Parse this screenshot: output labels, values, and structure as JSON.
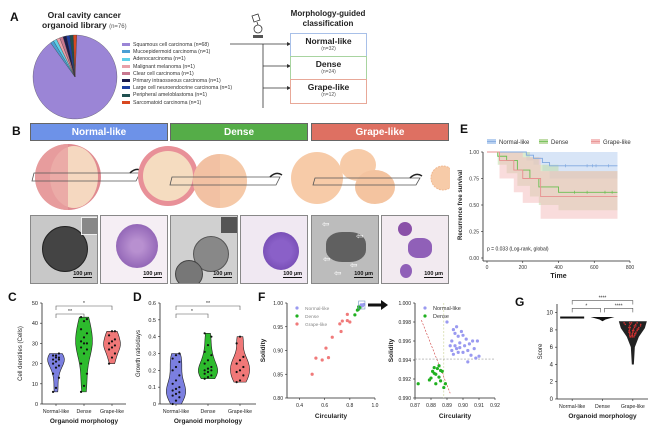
{
  "panels": {
    "A": "A",
    "B": "B",
    "C": "C",
    "D": "D",
    "E": "E",
    "F": "F",
    "G": "G"
  },
  "panel_a": {
    "title_line1": "Oral cavity cancer",
    "title_line2": "organoid library",
    "title_n": "(n=76)",
    "microscope_icon": "microscope-icon",
    "classification_title_line1": "Morphology-guided",
    "classification_title_line2": "classification",
    "classes": [
      {
        "name": "Normal-like",
        "n": "(n=32)",
        "border": "#a8c0e8"
      },
      {
        "name": "Dense",
        "n": "(n=24)",
        "border": "#a8d4a0"
      },
      {
        "name": "Grape-like",
        "n": "(n=12)",
        "border": "#e8a898"
      }
    ]
  },
  "chart_data": [
    {
      "id": "A-pie",
      "type": "pie",
      "title": "Oral cavity cancer organoid library (n=76)",
      "labels": [
        "Squamous cell carcinoma (n=68)",
        "Mucoepidermoid carcinoma (n=1)",
        "Adenocarcinoma (n=1)",
        "Malignant melanoma (n=1)",
        "Clear cell carcinoma (n=1)",
        "Primary intraosseous carcinoma (n=1)",
        "Large cell neuroendocrine carcinoma (n=1)",
        "Peripheral ameloblastoma (n=1)",
        "Sarcomatoid carcinoma (n=1)"
      ],
      "values": [
        68,
        1,
        1,
        1,
        1,
        1,
        1,
        1,
        1
      ],
      "colors": [
        "#9b85d6",
        "#4a9fd4",
        "#5fd0e8",
        "#e8a0a8",
        "#c87890",
        "#1a1a4a",
        "#2040a0",
        "#205050",
        "#d84820"
      ],
      "legend": "right"
    },
    {
      "id": "C-violin",
      "type": "violin",
      "title": "",
      "xlabel": "Organoid morphology",
      "ylabel": "Cell densities (Cells)",
      "categories": [
        "Normal-like",
        "Dense",
        "Grape-like"
      ],
      "ylim": [
        0,
        50
      ],
      "yticks": [
        0,
        10,
        20,
        30,
        40,
        50
      ],
      "series": [
        {
          "name": "Normal-like",
          "color": "#7b7fe0",
          "values": [
            6,
            8,
            13,
            15,
            18,
            19,
            20,
            21,
            22,
            22,
            23,
            23,
            24,
            24,
            25
          ]
        },
        {
          "name": "Dense",
          "color": "#2dbb2d",
          "values": [
            6,
            9,
            15,
            20,
            25,
            27,
            28,
            30,
            30,
            31,
            33,
            35,
            37,
            41,
            42,
            43
          ]
        },
        {
          "name": "Grape-like",
          "color": "#f07878",
          "values": [
            20,
            23,
            25,
            27,
            28,
            29,
            30,
            31,
            32,
            34,
            36,
            36
          ]
        }
      ],
      "significance": [
        {
          "pair": [
            "Normal-like",
            "Dense"
          ],
          "label": "**"
        },
        {
          "pair": [
            "Normal-like",
            "Grape-like"
          ],
          "label": "*"
        }
      ]
    },
    {
      "id": "D-violin",
      "type": "violin",
      "title": "",
      "xlabel": "Organoid morphology",
      "ylabel": "Growth ratio/days",
      "categories": [
        "Normal-like",
        "Dense",
        "Grape-like"
      ],
      "ylim": [
        0,
        0.6
      ],
      "yticks": [
        0.0,
        0.1,
        0.2,
        0.3,
        0.4,
        0.5,
        0.6
      ],
      "series": [
        {
          "name": "Normal-like",
          "color": "#7b7fe0",
          "values": [
            0.0,
            0.02,
            0.04,
            0.05,
            0.06,
            0.07,
            0.08,
            0.09,
            0.1,
            0.12,
            0.14,
            0.17,
            0.2,
            0.22,
            0.25,
            0.27,
            0.29,
            0.3
          ]
        },
        {
          "name": "Dense",
          "color": "#2dbb2d",
          "values": [
            0.15,
            0.16,
            0.17,
            0.18,
            0.19,
            0.2,
            0.2,
            0.21,
            0.22,
            0.24,
            0.26,
            0.29,
            0.31,
            0.35,
            0.4,
            0.42
          ]
        },
        {
          "name": "Grape-like",
          "color": "#f07878",
          "values": [
            0.13,
            0.14,
            0.17,
            0.19,
            0.2,
            0.22,
            0.24,
            0.26,
            0.28,
            0.36,
            0.4
          ]
        }
      ],
      "significance": [
        {
          "pair": [
            "Normal-like",
            "Dense"
          ],
          "label": "*"
        },
        {
          "pair": [
            "Normal-like",
            "Grape-like"
          ],
          "label": "**"
        }
      ]
    },
    {
      "id": "E-km",
      "type": "line",
      "title": "",
      "xlabel": "Time",
      "ylabel": "Recurrence free survival",
      "xlim": [
        0,
        800
      ],
      "ylim": [
        0,
        1.0
      ],
      "xticks": [
        0,
        200,
        400,
        600,
        800
      ],
      "yticks": [
        "0.00",
        "0.25",
        "0.50",
        "0.75",
        "1.00"
      ],
      "legend": "top",
      "annotation": "p = 0.033 (Log-rank, global)",
      "series": [
        {
          "name": "Normal-like",
          "color": "#7fa8e0",
          "band": "#b8d0f0",
          "x": [
            0,
            220,
            260,
            310,
            350,
            730
          ],
          "y": [
            1.0,
            0.97,
            0.94,
            0.9,
            0.87,
            0.87
          ],
          "lower": [
            1.0,
            0.92,
            0.88,
            0.82,
            0.75,
            0.75
          ],
          "upper": [
            1.0,
            1.0,
            1.0,
            1.0,
            1.0,
            1.0
          ],
          "censor_x": [
            440,
            560,
            590,
            610,
            680
          ]
        },
        {
          "name": "Dense",
          "color": "#6abf50",
          "band": "#c0dca8",
          "x": [
            0,
            60,
            110,
            170,
            240,
            290,
            400,
            730
          ],
          "y": [
            1.0,
            0.96,
            0.92,
            0.83,
            0.75,
            0.67,
            0.62,
            0.62
          ],
          "lower": [
            1.0,
            0.88,
            0.8,
            0.68,
            0.58,
            0.5,
            0.45,
            0.45
          ],
          "upper": [
            1.0,
            1.0,
            1.0,
            1.0,
            0.95,
            0.88,
            0.82,
            0.82
          ],
          "censor_x": [
            490,
            560,
            660,
            700
          ]
        },
        {
          "name": "Grape-like",
          "color": "#e89090",
          "band": "#f4c0c0",
          "x": [
            0,
            70,
            150,
            200,
            300,
            730
          ],
          "y": [
            1.0,
            0.92,
            0.83,
            0.75,
            0.58,
            0.58
          ],
          "lower": [
            1.0,
            0.75,
            0.62,
            0.52,
            0.37,
            0.37
          ],
          "upper": [
            1.0,
            1.0,
            1.0,
            0.95,
            0.82,
            0.82
          ],
          "censor_x": []
        }
      ]
    },
    {
      "id": "F-scatter-full",
      "type": "scatter",
      "xlabel": "Circularity",
      "ylabel": "Solidity",
      "xlim": [
        0.3,
        1.0
      ],
      "ylim": [
        0.8,
        1.0
      ],
      "xticks": [
        "0.4",
        "0.6",
        "0.8",
        "1.0"
      ],
      "yticks": [
        "0.80",
        "0.85",
        "0.90",
        "0.95",
        "1.00"
      ],
      "legend": "top-left",
      "series": [
        {
          "name": "Normal-like",
          "color": "#9a9af0",
          "points": [
            [
              0.89,
              0.996
            ],
            [
              0.9,
              0.995
            ],
            [
              0.91,
              0.997
            ],
            [
              0.9,
              0.994
            ]
          ]
        },
        {
          "name": "Dense",
          "color": "#20b020",
          "points": [
            [
              0.84,
              0.975
            ],
            [
              0.86,
              0.985
            ],
            [
              0.87,
              0.987
            ],
            [
              0.88,
              0.99
            ],
            [
              0.87,
              0.992
            ]
          ]
        },
        {
          "name": "Grape-like",
          "color": "#f07a7a",
          "points": [
            [
              0.5,
              0.85
            ],
            [
              0.53,
              0.884
            ],
            [
              0.58,
              0.88
            ],
            [
              0.61,
              0.905
            ],
            [
              0.63,
              0.885
            ],
            [
              0.66,
              0.928
            ],
            [
              0.72,
              0.956
            ],
            [
              0.73,
              0.94
            ],
            [
              0.74,
              0.962
            ],
            [
              0.78,
              0.963
            ],
            [
              0.78,
              0.976
            ],
            [
              0.8,
              0.96
            ]
          ]
        }
      ]
    },
    {
      "id": "F-scatter-zoom",
      "type": "scatter",
      "xlabel": "Circularity",
      "ylabel": "Solidity",
      "xlim": [
        0.87,
        0.92
      ],
      "ylim": [
        0.99,
        1.0
      ],
      "xticks": [
        "0.87",
        "0.88",
        "0.89",
        "0.90",
        "0.91",
        "0.92"
      ],
      "yticks": [
        "0.990",
        "0.992",
        "0.994",
        "0.996",
        "0.998",
        "1.000"
      ],
      "legend": "top-left",
      "series": [
        {
          "name": "Normal-like",
          "color": "#9a9af0",
          "points": [
            [
              0.89,
              0.998
            ],
            [
              0.892,
              0.9955
            ],
            [
              0.893,
              0.996
            ],
            [
              0.894,
              0.9972
            ],
            [
              0.895,
              0.9968
            ],
            [
              0.896,
              0.9975
            ],
            [
              0.896,
              0.9952
            ],
            [
              0.897,
              0.9965
            ],
            [
              0.898,
              0.9958
            ],
            [
              0.899,
              0.997
            ],
            [
              0.9,
              0.9966
            ],
            [
              0.9,
              0.9948
            ],
            [
              0.901,
              0.9955
            ],
            [
              0.902,
              0.9962
            ],
            [
              0.903,
              0.995
            ],
            [
              0.904,
              0.9957
            ],
            [
              0.905,
              0.9945
            ],
            [
              0.906,
              0.996
            ],
            [
              0.907,
              0.9952
            ],
            [
              0.908,
              0.9942
            ],
            [
              0.893,
              0.995
            ],
            [
              0.894,
              0.9946
            ],
            [
              0.895,
              0.9955
            ],
            [
              0.897,
              0.9948
            ],
            [
              0.909,
              0.996
            ],
            [
              0.91,
              0.9944
            ],
            [
              0.903,
              0.9938
            ],
            [
              0.898,
              0.9953
            ]
          ]
        },
        {
          "name": "Dense",
          "color": "#20b020",
          "points": [
            [
              0.872,
              0.9915
            ],
            [
              0.879,
              0.9919
            ],
            [
              0.881,
              0.9928
            ],
            [
              0.882,
              0.9932
            ],
            [
              0.883,
              0.9925
            ],
            [
              0.884,
              0.9931
            ],
            [
              0.885,
              0.9934
            ],
            [
              0.885,
              0.9922
            ],
            [
              0.886,
              0.9918
            ],
            [
              0.883,
              0.9915
            ],
            [
              0.887,
              0.9928
            ],
            [
              0.888,
              0.9911
            ],
            [
              0.889,
              0.9915
            ],
            [
              0.88,
              0.9921
            ],
            [
              0.882,
              0.9926
            ],
            [
              0.886,
              0.9929
            ]
          ]
        }
      ],
      "thresholds": {
        "x": 0.888,
        "y": 0.9941
      }
    },
    {
      "id": "G-violin",
      "type": "violin",
      "xlabel": "Organoid morphology",
      "ylabel": "Score",
      "categories": [
        "Normal-like",
        "Dense",
        "Grape-like"
      ],
      "ylim": [
        0,
        11
      ],
      "yticks": [
        0,
        2,
        4,
        6,
        8,
        10
      ],
      "series": [
        {
          "name": "Normal-like",
          "color": "#111111",
          "values": [
            9.5,
            9.5,
            9.5
          ]
        },
        {
          "name": "Dense",
          "color": "#111111",
          "values": [
            9.1,
            9.3,
            9.4
          ]
        },
        {
          "name": "Grape-like",
          "color": "#c03030",
          "values": [
            4.0,
            6.0,
            7.0,
            7.5,
            8.0,
            8.3,
            8.6,
            8.8,
            9.0
          ]
        }
      ],
      "significance": [
        {
          "pair": [
            "Normal-like",
            "Dense"
          ],
          "label": "*"
        },
        {
          "pair": [
            "Dense",
            "Grape-like"
          ],
          "label": "****"
        },
        {
          "pair": [
            "Normal-like",
            "Grape-like"
          ],
          "label": "****"
        }
      ]
    }
  ],
  "panel_b": {
    "headers": [
      {
        "label": "Normal-like",
        "color": "#6d92e8"
      },
      {
        "label": "Dense",
        "color": "#55ad48"
      },
      {
        "label": "Grape-like",
        "color": "#de7062"
      }
    ],
    "scale_bar": "100 µm"
  },
  "panel_f": {
    "arrow": "arrow-right-icon"
  }
}
